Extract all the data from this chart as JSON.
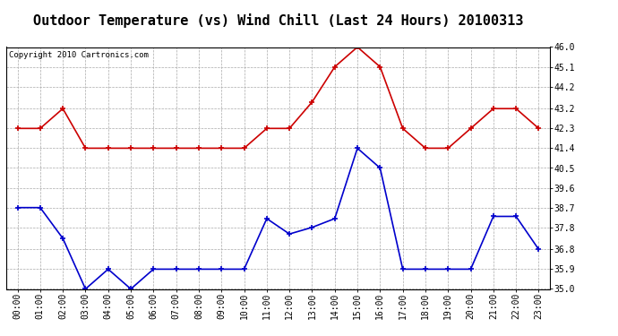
{
  "title": "Outdoor Temperature (vs) Wind Chill (Last 24 Hours) 20100313",
  "copyright": "Copyright 2010 Cartronics.com",
  "hours": [
    "00:00",
    "01:00",
    "02:00",
    "03:00",
    "04:00",
    "05:00",
    "06:00",
    "07:00",
    "08:00",
    "09:00",
    "10:00",
    "11:00",
    "12:00",
    "13:00",
    "14:00",
    "15:00",
    "16:00",
    "17:00",
    "18:00",
    "19:00",
    "20:00",
    "21:00",
    "22:00",
    "23:00"
  ],
  "temp": [
    42.3,
    42.3,
    43.2,
    41.4,
    41.4,
    41.4,
    41.4,
    41.4,
    41.4,
    41.4,
    41.4,
    42.3,
    42.3,
    43.5,
    45.1,
    46.0,
    45.1,
    42.3,
    41.4,
    41.4,
    42.3,
    43.2,
    43.2,
    42.3
  ],
  "windchill": [
    38.7,
    38.7,
    37.3,
    35.0,
    35.9,
    35.0,
    35.9,
    35.9,
    35.9,
    35.9,
    35.9,
    38.2,
    37.5,
    37.8,
    38.2,
    41.4,
    40.5,
    35.9,
    35.9,
    35.9,
    35.9,
    38.3,
    38.3,
    36.8
  ],
  "temp_color": "#cc0000",
  "windchill_color": "#0000cc",
  "bg_color": "#ffffff",
  "plot_bg_color": "#ffffff",
  "grid_color": "#aaaaaa",
  "ylim_min": 35.0,
  "ylim_max": 46.0,
  "yticks": [
    35.0,
    35.9,
    36.8,
    37.8,
    38.7,
    39.6,
    40.5,
    41.4,
    42.3,
    43.2,
    44.2,
    45.1,
    46.0
  ],
  "title_fontsize": 11,
  "tick_fontsize": 7,
  "copyright_fontsize": 6.5,
  "marker": "+",
  "linewidth": 1.2,
  "markersize": 5,
  "markeredgewidth": 1.2
}
